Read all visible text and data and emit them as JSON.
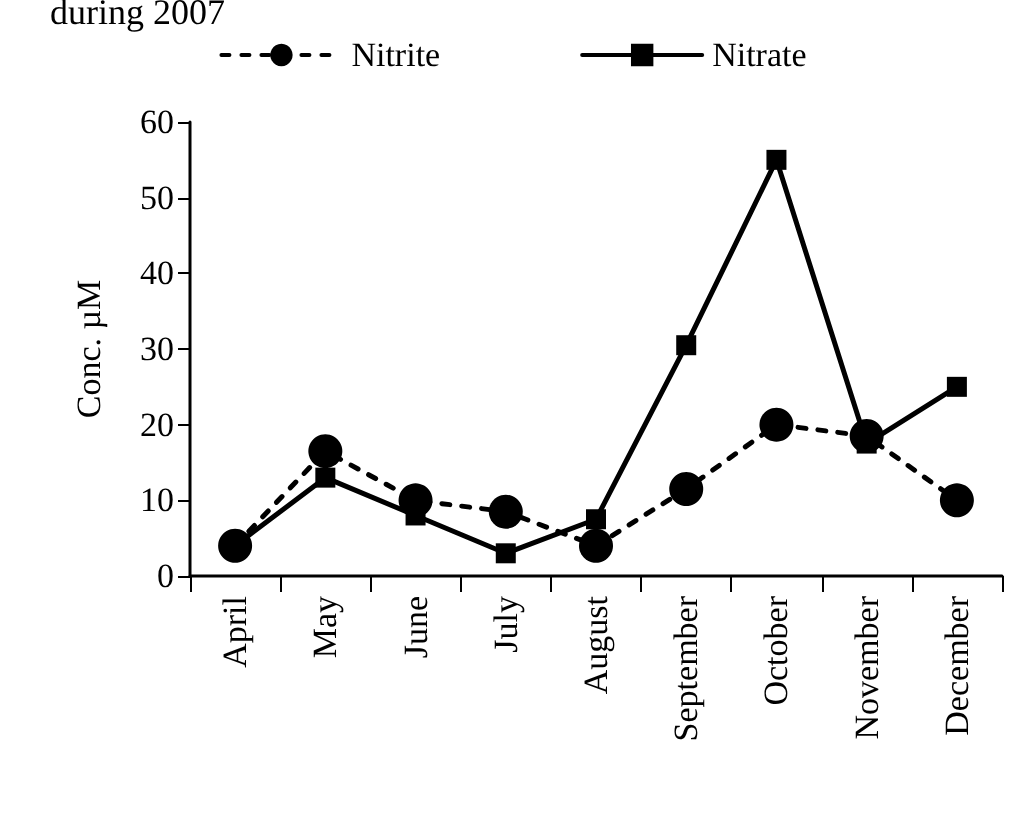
{
  "chart_data": {
    "type": "line",
    "title": "during 2007",
    "ylabel": "Conc. µM",
    "categories": [
      "April",
      "May",
      "June",
      "July",
      "August",
      "September",
      "October",
      "November",
      "December"
    ],
    "series": [
      {
        "name": "Nitrite",
        "color": "#000000",
        "marker": "circle",
        "line_style": "dashed",
        "values": [
          4,
          16.5,
          10,
          8.5,
          4,
          11.5,
          20,
          18.5,
          10
        ]
      },
      {
        "name": "Nitrate",
        "color": "#000000",
        "marker": "square",
        "line_style": "solid",
        "values": [
          4,
          13,
          8,
          3,
          7.5,
          30.5,
          55,
          17.5,
          25
        ]
      }
    ],
    "ylim": [
      0,
      60
    ],
    "yticks": [
      0,
      10,
      20,
      30,
      40,
      50,
      60
    ],
    "grid": false,
    "legend": "top"
  }
}
